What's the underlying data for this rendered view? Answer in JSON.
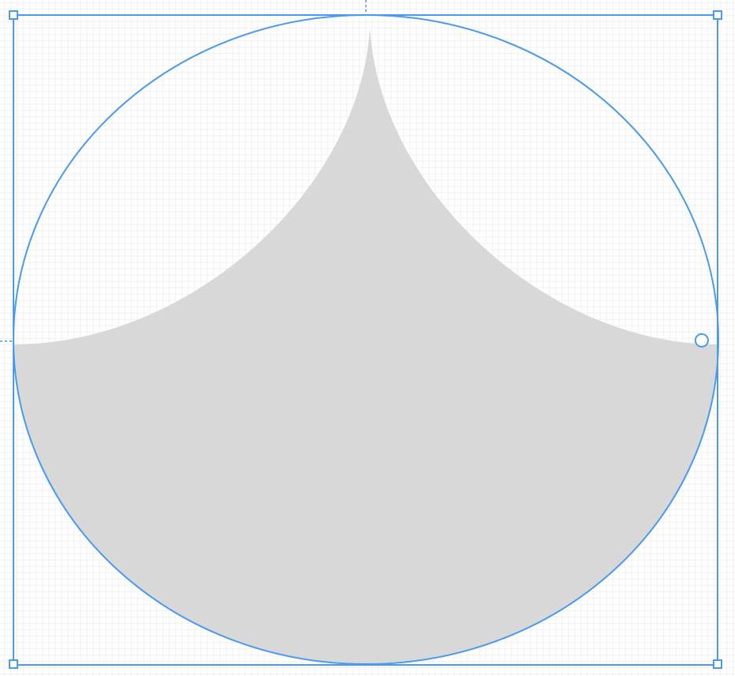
{
  "editor": {
    "canvas": {
      "grid": true
    },
    "shape": {
      "type": "drop-shape",
      "fill_color": "#d8d8d8",
      "outline_color": "#4a9af0"
    },
    "selection": {
      "color": "#4a9af0",
      "handles": [
        "top-left",
        "top-right",
        "bottom-left",
        "bottom-right"
      ],
      "parameter_handle": "curve-adjust"
    },
    "guides": [
      "vertical-center-guide",
      "horizontal-middle-guide"
    ]
  }
}
